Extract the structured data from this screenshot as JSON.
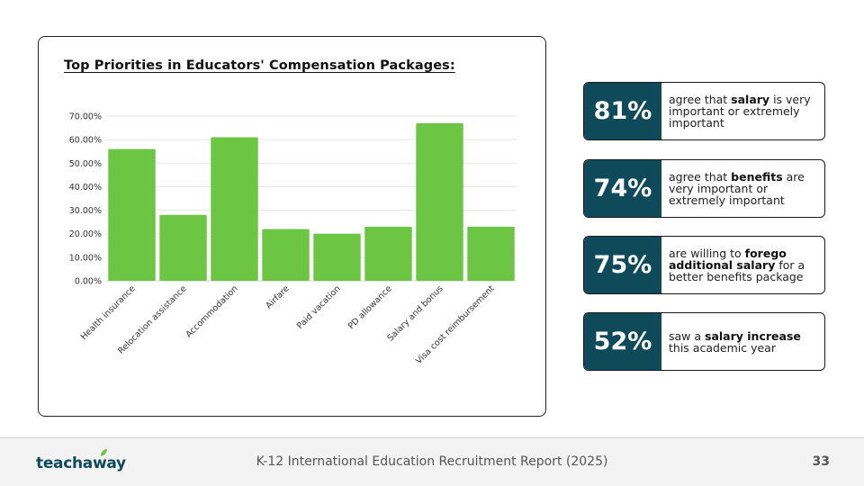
{
  "chart_data": {
    "type": "bar",
    "title": "Top Priorities in Educators' Compensation Packages:",
    "categories": [
      "Health insurance",
      "Relocation assistance",
      "Accommodation",
      "Airfare",
      "Paid vacation",
      "PD allowance",
      "Salary and bonus",
      "Visa cost reimbursement"
    ],
    "values": [
      56,
      28,
      61,
      22,
      20,
      23,
      67,
      23
    ],
    "yticks": [
      "0.00%",
      "10.00%",
      "20.00%",
      "30.00%",
      "40.00%",
      "50.00%",
      "60.00%",
      "70.00%"
    ],
    "ylim": [
      0,
      70
    ],
    "grid": true,
    "bar_color": "#6cc644",
    "xlabel": "",
    "ylabel": ""
  },
  "stats": [
    {
      "value": "81%",
      "parts": [
        {
          "t": "agree that "
        },
        {
          "t": "salary",
          "b": true
        },
        {
          "t": " is very important or extremely important"
        }
      ]
    },
    {
      "value": "74%",
      "parts": [
        {
          "t": "agree that "
        },
        {
          "t": "benefits",
          "b": true
        },
        {
          "t": " are very important or extremely important"
        }
      ]
    },
    {
      "value": "75%",
      "parts": [
        {
          "t": "are willing to "
        },
        {
          "t": "forego additional salary",
          "b": true
        },
        {
          "t": " for a better benefits package"
        }
      ]
    },
    {
      "value": "52%",
      "parts": [
        {
          "t": "saw a "
        },
        {
          "t": "salary increase",
          "b": true
        },
        {
          "t": " this academic year"
        }
      ]
    }
  ],
  "colors": {
    "stat_bg": "#0f4a5a",
    "accent_green": "#6cc644"
  },
  "footer": {
    "logo": "teachaway",
    "report_title": "K-12 International Education Recruitment Report (2025)",
    "page_number": "33"
  }
}
